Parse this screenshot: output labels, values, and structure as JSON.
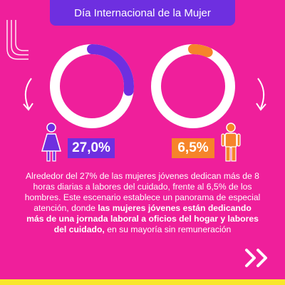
{
  "header": {
    "title": "Día Internacional de la Mujer"
  },
  "stats": {
    "women": {
      "label": "27,0%",
      "fraction": 0.27,
      "color": "#6e2fe0"
    },
    "men": {
      "label": "6,5%",
      "fraction": 0.065,
      "color": "#f6842a"
    }
  },
  "body": {
    "text_part1": "Alrededor del 27% de las mujeres jóvenes dedican más de 8 horas diarias a labores del cuidado, frente al 6,5% de los hombres. Este escenario establece un panorama de especial atención, donde ",
    "text_bold": "las mujeres jóvenes están dedicando más de una jornada laboral a oficios del hogar y labores del cuidado,",
    "text_part2": " en su mayoría sin remuneración"
  },
  "colors": {
    "background": "#ef1f9b",
    "accent_purple": "#6e2fe0",
    "accent_orange": "#f6842a",
    "accent_yellow": "#f8e62a"
  },
  "icons": {
    "women": "woman-icon",
    "men": "man-icon",
    "next": "double-chevron-right-icon"
  }
}
